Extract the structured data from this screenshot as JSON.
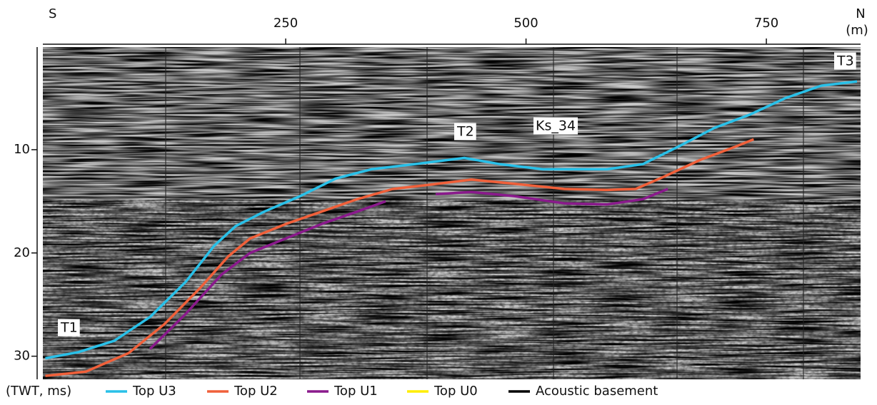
{
  "chart_data": {
    "type": "line",
    "left_label": "S",
    "right_label": "N",
    "x_unit": "(m)",
    "y_label": "(TWT, ms)",
    "xlim": [
      0,
      848
    ],
    "xticks": [
      250,
      500,
      750
    ],
    "ylim": [
      0.2,
      32.1
    ],
    "y_inverted": true,
    "yticks": [
      10,
      20,
      30
    ],
    "annotations": [
      "T1",
      "T2",
      "T3",
      "Ks_34"
    ],
    "series": [
      {
        "name": "Top U3",
        "color": "#29c0e8",
        "x": [
          0,
          34.5,
          71.7,
          108.8,
          146,
          175.7,
          198,
          227.7,
          265,
          302,
          339,
          383.7,
          435.8,
          472.9,
          517.5,
          547.2,
          584.3,
          621.5,
          658.6,
          695.8,
          732.9,
          770,
          807.2,
          844.3
        ],
        "values": [
          30.2,
          29.6,
          28.5,
          26.2,
          22.8,
          19.3,
          17.4,
          16.0,
          14.5,
          12.8,
          11.9,
          11.4,
          10.8,
          11.4,
          11.9,
          11.9,
          11.9,
          11.4,
          9.7,
          7.9,
          6.6,
          5.0,
          3.8,
          3.4
        ]
      },
      {
        "name": "Top U2",
        "color": "#f0603a",
        "x": [
          0,
          42,
          86.6,
          123.8,
          160.9,
          190.6,
          212.9,
          250,
          287.2,
          324.3,
          361.4,
          398.7,
          443.3,
          487.9,
          539.9,
          584.3,
          614.1,
          643.8,
          681,
          718,
          736.8
        ],
        "values": [
          31.9,
          31.5,
          29.7,
          26.9,
          23.4,
          20.3,
          18.6,
          17.2,
          16.0,
          14.8,
          13.8,
          13.4,
          12.9,
          13.3,
          13.8,
          13.9,
          13.8,
          12.6,
          11.0,
          9.7,
          9.0
        ]
      },
      {
        "name": "Top U1",
        "color": "#8a1a8c",
        "x": [
          108.8,
          146,
          183.1,
          212.9,
          250,
          287.2,
          324.3,
          354,
          380,
          406,
          443.3,
          487.9,
          539.9,
          584.3,
          621.5,
          647.5
        ],
        "values": [
          29.3,
          25.9,
          22.1,
          20.0,
          18.6,
          17.2,
          16.0,
          15.0,
          null,
          14.3,
          14.1,
          14.5,
          15.2,
          15.3,
          14.8,
          13.8
        ]
      },
      {
        "name": "Top U0",
        "color": "#ffee00",
        "x": [],
        "values": []
      },
      {
        "name": "Acoustic basement",
        "color": "#000000",
        "x": [],
        "values": []
      }
    ]
  }
}
